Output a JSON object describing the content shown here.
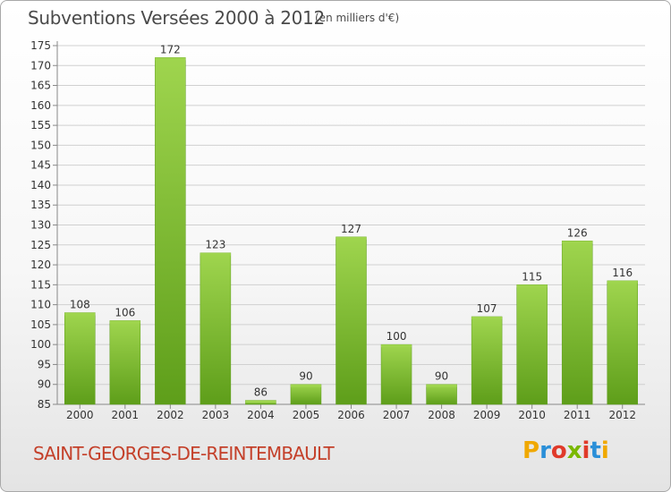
{
  "header": {
    "title": "Subventions Versées 2000 à 2012",
    "unit_note": "(en milliers d'€)"
  },
  "footer": {
    "municipality": "SAINT-GEORGES-DE-REINTEMBAULT",
    "logo": {
      "letters": [
        "P",
        "r",
        "o",
        "x",
        "i",
        "t",
        "i"
      ],
      "colors": [
        "#f0a800",
        "#2a8fd8",
        "#e03a2a",
        "#7ab800",
        "#e03a2a",
        "#2a8fd8",
        "#f0a800"
      ]
    }
  },
  "chart_data": {
    "type": "bar",
    "title": "Subventions Versées 2000 à 2012",
    "subtitle": "(en milliers d'€)",
    "categories": [
      "2000",
      "2001",
      "2002",
      "2003",
      "2004",
      "2005",
      "2006",
      "2007",
      "2008",
      "2009",
      "2010",
      "2011",
      "2012"
    ],
    "values": [
      108,
      106,
      172,
      123,
      86,
      90,
      127,
      100,
      90,
      107,
      115,
      126,
      116
    ],
    "ylim": [
      85,
      175
    ],
    "yticks": [
      85,
      90,
      95,
      100,
      105,
      110,
      115,
      120,
      125,
      130,
      135,
      140,
      145,
      150,
      155,
      160,
      165,
      170,
      175
    ],
    "grid": true,
    "bar_color": "#7cc12f",
    "bar_color_light": "#9fd54e",
    "bar_color_dark": "#5e9e1a"
  }
}
